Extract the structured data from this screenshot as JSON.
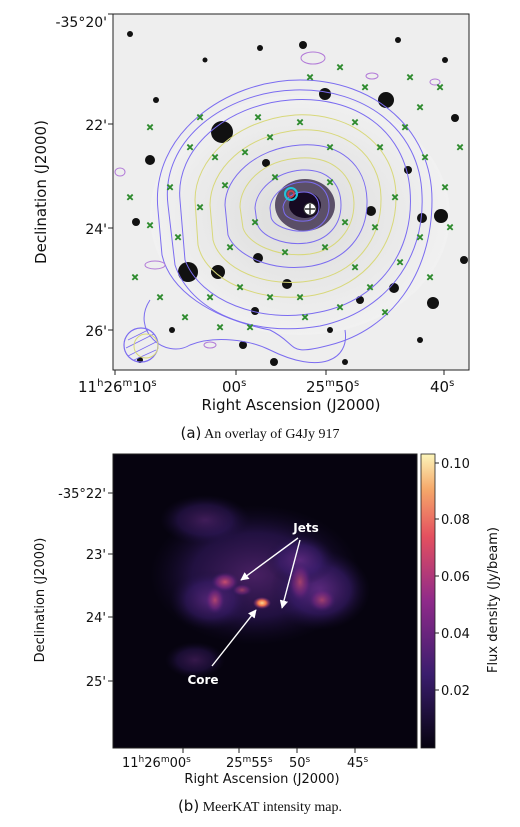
{
  "panel_a": {
    "ylabel": "Declination (J2000)",
    "xlabel": "Right Ascension (J2000)",
    "y_ticks": [
      "-35°20'",
      "22'",
      "24'",
      "26'"
    ],
    "x_ticks_plain": [
      "00",
      "25",
      "50",
      "40"
    ],
    "x_tick_first": {
      "h": "11",
      "m": "26",
      "s": "10"
    },
    "caption_label": "(a)",
    "caption_text": "An overlay of G4Jy 917",
    "colors": {
      "contour_a": "#7b6cf0",
      "contour_b": "#d8d87a",
      "marker": "#2e8b2e",
      "ring": "#22c3d8"
    }
  },
  "panel_b": {
    "ylabel": "Declination (J2000)",
    "xlabel": "Right Ascension (J2000)",
    "y_ticks": [
      "-35°22'",
      "23'",
      "24'",
      "25'"
    ],
    "x_tick_first": "11h26m00s",
    "x_ticks_plain": [
      "25m55s",
      "50s",
      "45s"
    ],
    "colorbar_label": "Flux density (Jy/beam)",
    "colorbar_ticks": [
      "0.10",
      "0.08",
      "0.06",
      "0.04",
      "0.02"
    ],
    "annotation_jets": "Jets",
    "annotation_core": "Core",
    "caption_label": "(b)",
    "caption_text": "MeerKAT intensity map.",
    "colors": {
      "bg": "#06030f",
      "low": "#2b1a56",
      "mid": "#8f2a8a",
      "high": "#f3a86a",
      "top": "#fcf5ba"
    }
  }
}
